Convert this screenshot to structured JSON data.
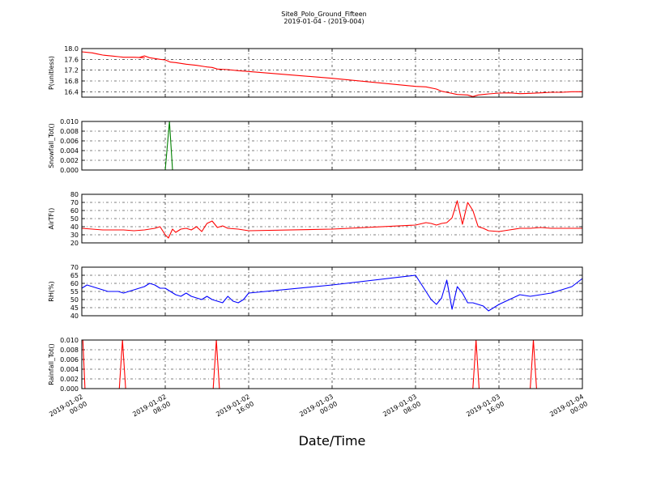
{
  "figure": {
    "title": "Site8_Polo_Ground_Fifteen",
    "subtitle": "2019-01-04 - (2019-004)",
    "xlabel": "Date/Time",
    "x_ticks": [
      {
        "t": 0,
        "line1": "2019-01-02",
        "line2": "00:00"
      },
      {
        "t": 8,
        "line1": "2019-01-02",
        "line2": "08:00"
      },
      {
        "t": 16,
        "line1": "2019-01-02",
        "line2": "16:00"
      },
      {
        "t": 24,
        "line1": "2019-01-03",
        "line2": "00:00"
      },
      {
        "t": 32,
        "line1": "2019-01-03",
        "line2": "08:00"
      },
      {
        "t": 40,
        "line1": "2019-01-03",
        "line2": "16:00"
      },
      {
        "t": 48,
        "line1": "2019-01-04",
        "line2": "00:00"
      }
    ]
  },
  "chart_data": [
    {
      "type": "line",
      "ylabel": "P(unitless)",
      "ylim": [
        16.2,
        18.0
      ],
      "yticks": [
        "16.4",
        "16.8",
        "17.2",
        "17.6",
        "18.0"
      ],
      "xlim": [
        0,
        48
      ],
      "grid": true,
      "color": "#ff0000",
      "x": [
        0,
        1,
        1.5,
        2,
        2.5,
        3,
        3.5,
        4,
        5,
        6,
        5.5,
        6,
        6.5,
        7,
        7.5,
        8,
        8.5,
        9,
        10,
        11,
        12,
        12.5,
        13,
        14,
        15,
        16,
        24,
        32,
        33,
        34,
        34.5,
        35,
        36,
        37,
        37.5,
        38,
        38.5,
        39,
        40,
        41,
        42,
        43,
        44,
        45,
        46,
        47,
        48
      ],
      "values": [
        17.88,
        17.84,
        17.8,
        17.76,
        17.74,
        17.72,
        17.7,
        17.68,
        17.68,
        17.66,
        17.67,
        17.73,
        17.66,
        17.63,
        17.6,
        17.58,
        17.5,
        17.48,
        17.42,
        17.38,
        17.32,
        17.3,
        17.24,
        17.22,
        17.18,
        17.15,
        16.9,
        16.6,
        16.58,
        16.5,
        16.42,
        16.38,
        16.3,
        16.28,
        16.22,
        16.28,
        16.3,
        16.32,
        16.35,
        16.36,
        16.33,
        16.34,
        16.36,
        16.38,
        16.38,
        16.4,
        16.4
      ]
    },
    {
      "type": "line",
      "ylabel": "Snowfall_Tot()",
      "ylim": [
        0.0,
        0.01
      ],
      "yticks": [
        "0.000",
        "0.002",
        "0.004",
        "0.006",
        "0.008",
        "0.010"
      ],
      "xlim": [
        0,
        48
      ],
      "grid": true,
      "color": "#008000",
      "x": [
        0,
        8.0,
        8.4,
        8.7,
        16,
        33,
        48
      ],
      "values": [
        0,
        0,
        0.01,
        0,
        0,
        0,
        0
      ]
    },
    {
      "type": "line",
      "ylabel": "AirTF()",
      "ylim": [
        20,
        80
      ],
      "yticks": [
        "20",
        "30",
        "40",
        "50",
        "60",
        "70",
        "80"
      ],
      "xlim": [
        0,
        48
      ],
      "grid": true,
      "color": "#ff0000",
      "x": [
        0,
        1,
        2,
        3,
        4,
        5,
        6,
        7,
        7.5,
        8,
        8.3,
        8.7,
        9,
        9.5,
        10,
        10.5,
        11,
        11.5,
        12,
        12.5,
        13,
        13.5,
        14,
        15,
        16,
        24,
        32,
        33,
        33.5,
        34,
        34.5,
        35,
        35.5,
        36,
        36.5,
        37,
        37.5,
        38,
        38.5,
        39,
        40,
        41,
        42,
        43,
        44,
        45,
        46,
        47,
        48
      ],
      "values": [
        38,
        37,
        36,
        36,
        36,
        35,
        36,
        38,
        40,
        30,
        26,
        37,
        33,
        37,
        38,
        36,
        40,
        34,
        44,
        47,
        39,
        41,
        38,
        37,
        35,
        37,
        42,
        45,
        44,
        42,
        44,
        45,
        51,
        72,
        43,
        70,
        60,
        40,
        38,
        35,
        34,
        36,
        38,
        38,
        39,
        38,
        38,
        38,
        38
      ]
    },
    {
      "type": "line",
      "ylabel": "RH(%)",
      "ylim": [
        40,
        70
      ],
      "yticks": [
        "40",
        "45",
        "50",
        "55",
        "60",
        "65",
        "70"
      ],
      "xlim": [
        0,
        48
      ],
      "grid": true,
      "color": "#0000ff",
      "x": [
        0,
        0.5,
        1,
        1.5,
        2,
        2.5,
        3,
        3.5,
        4,
        4.5,
        5,
        5.5,
        6,
        6.5,
        7,
        7.5,
        8,
        8.5,
        9,
        9.5,
        10,
        10.5,
        11,
        11.5,
        12,
        12.5,
        13,
        13.5,
        14,
        14.5,
        15,
        15.5,
        16,
        24,
        32,
        33,
        33.5,
        34,
        34.5,
        35,
        35.5,
        36,
        36.5,
        37,
        37.5,
        38,
        38.5,
        39,
        40,
        41,
        42,
        43,
        44,
        45,
        46,
        47,
        48
      ],
      "values": [
        57,
        59,
        58,
        57,
        56,
        55,
        55,
        55,
        54,
        55,
        56,
        57,
        58,
        60,
        59,
        57,
        57,
        55,
        53,
        52,
        54,
        52,
        51,
        50,
        52,
        50,
        49,
        48,
        52,
        49,
        48,
        50,
        54,
        59,
        65,
        55,
        50,
        47,
        51,
        62,
        44,
        58,
        54,
        48,
        48,
        47,
        46,
        43,
        47,
        50,
        53,
        52,
        53,
        54,
        56,
        58,
        63
      ]
    },
    {
      "type": "line",
      "ylabel": "Rainfall_Tot()",
      "ylim": [
        0.0,
        0.01
      ],
      "yticks": [
        "0.000",
        "0.002",
        "0.004",
        "0.006",
        "0.008",
        "0.010"
      ],
      "xlim": [
        0,
        48
      ],
      "grid": true,
      "color": "#ff0000",
      "x": [
        0,
        0.1,
        0.3,
        3.6,
        3.9,
        4.2,
        12.6,
        12.9,
        13.2,
        37.5,
        37.8,
        38.1,
        43,
        43.3,
        43.6,
        48
      ],
      "values": [
        0.01,
        0.01,
        0,
        0,
        0.01,
        0,
        0,
        0.01,
        0,
        0,
        0.01,
        0,
        0,
        0.01,
        0,
        0
      ]
    }
  ]
}
